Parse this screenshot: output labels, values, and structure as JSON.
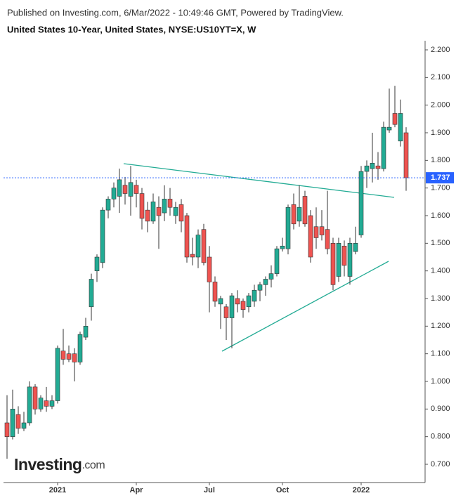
{
  "header": {
    "published": "Published on Investing.com, 6/Mar/2022 - 10:49:46 GMT, Powered by TradingView.",
    "logo": "Investing",
    "logo_suffix": ".com"
  },
  "chart_data": {
    "type": "candlestick",
    "title": "United States 10-Year, United States, NYSE:US10YT=X, W",
    "categories": [
      null,
      null,
      null,
      null,
      null,
      null,
      null,
      null,
      null,
      "2021",
      null,
      null,
      null,
      null,
      null,
      null,
      null,
      null,
      null,
      null,
      null,
      null,
      null,
      "Apr",
      null,
      null,
      null,
      null,
      null,
      null,
      null,
      null,
      null,
      null,
      null,
      null,
      "Jul",
      null,
      null,
      null,
      null,
      null,
      null,
      null,
      null,
      null,
      null,
      null,
      null,
      "Oct",
      null,
      null,
      null,
      null,
      null,
      null,
      null,
      null,
      null,
      null,
      null,
      null,
      null,
      "2022",
      null,
      null,
      null,
      null,
      null,
      null,
      null,
      null
    ],
    "open": [
      0.85,
      0.8,
      0.88,
      0.83,
      0.85,
      0.98,
      0.9,
      0.93,
      0.91,
      0.93,
      1.11,
      1.1,
      1.1,
      1.07,
      1.16,
      1.27,
      1.4,
      1.43,
      1.62,
      1.66,
      1.67,
      1.71,
      1.67,
      1.71,
      1.68,
      1.62,
      1.58,
      1.63,
      1.61,
      1.66,
      1.6,
      1.64,
      1.6,
      1.46,
      1.45,
      1.55,
      1.45,
      1.36,
      1.28,
      1.27,
      1.23,
      1.3,
      1.29,
      1.27,
      1.29,
      1.33,
      1.35,
      1.37,
      1.39,
      1.48,
      1.48,
      1.64,
      1.58,
      1.67,
      1.6,
      1.56,
      1.56,
      1.55,
      1.5,
      1.38,
      1.49,
      1.38,
      1.47,
      1.53,
      1.76,
      1.77,
      1.78,
      1.77,
      1.91,
      1.97,
      1.87,
      1.9
    ],
    "high": [
      0.95,
      0.97,
      0.91,
      0.89,
      1.0,
      0.99,
      0.95,
      0.98,
      0.95,
      1.13,
      1.19,
      1.13,
      1.12,
      1.18,
      1.23,
      1.39,
      1.46,
      1.63,
      1.67,
      1.72,
      1.77,
      1.74,
      1.78,
      1.73,
      1.7,
      1.65,
      1.68,
      1.67,
      1.71,
      1.7,
      1.65,
      1.66,
      1.61,
      1.52,
      1.55,
      1.57,
      1.49,
      1.38,
      1.31,
      1.28,
      1.32,
      1.33,
      1.3,
      1.32,
      1.35,
      1.36,
      1.38,
      1.42,
      1.49,
      1.52,
      1.64,
      1.68,
      1.71,
      1.69,
      1.62,
      1.63,
      1.62,
      1.69,
      1.52,
      1.52,
      1.51,
      1.52,
      1.56,
      1.78,
      1.8,
      1.9,
      1.83,
      1.94,
      2.06,
      2.07,
      2.02,
      1.92
    ],
    "low": [
      0.72,
      0.79,
      0.81,
      0.82,
      0.84,
      0.88,
      0.89,
      0.89,
      0.9,
      0.92,
      1.06,
      1.07,
      1.0,
      1.06,
      1.15,
      1.22,
      1.36,
      1.41,
      1.59,
      1.63,
      1.61,
      1.64,
      1.6,
      1.63,
      1.55,
      1.54,
      1.57,
      1.48,
      1.58,
      1.6,
      1.57,
      1.54,
      1.43,
      1.42,
      1.41,
      1.42,
      1.25,
      1.27,
      1.19,
      1.15,
      1.12,
      1.25,
      1.23,
      1.25,
      1.27,
      1.29,
      1.31,
      1.34,
      1.38,
      1.47,
      1.46,
      1.55,
      1.56,
      1.56,
      1.43,
      1.48,
      1.51,
      1.46,
      1.33,
      1.36,
      1.38,
      1.35,
      1.46,
      1.52,
      1.7,
      1.72,
      1.73,
      1.76,
      1.9,
      1.92,
      1.85,
      1.69
    ],
    "close": [
      0.8,
      0.9,
      0.83,
      0.85,
      0.98,
      0.9,
      0.94,
      0.91,
      0.93,
      1.12,
      1.08,
      1.08,
      1.07,
      1.17,
      1.2,
      1.37,
      1.45,
      1.62,
      1.66,
      1.7,
      1.73,
      1.68,
      1.72,
      1.68,
      1.59,
      1.58,
      1.65,
      1.6,
      1.66,
      1.63,
      1.63,
      1.58,
      1.45,
      1.45,
      1.53,
      1.43,
      1.36,
      1.29,
      1.3,
      1.23,
      1.31,
      1.28,
      1.26,
      1.31,
      1.33,
      1.35,
      1.37,
      1.39,
      1.48,
      1.49,
      1.63,
      1.57,
      1.63,
      1.57,
      1.45,
      1.52,
      1.53,
      1.48,
      1.35,
      1.5,
      1.42,
      1.5,
      1.5,
      1.76,
      1.78,
      1.79,
      1.77,
      1.92,
      1.92,
      1.93,
      1.97,
      1.737
    ],
    "up_color": "#22ab94",
    "down_color": "#ef5350",
    "last_price": 1.737,
    "ylim": [
      0.65,
      2.25
    ],
    "yticks": [
      {
        "value": 0.7,
        "label": "0.700"
      },
      {
        "value": 0.8,
        "label": "0.800"
      },
      {
        "value": 0.9,
        "label": "0.900"
      },
      {
        "value": 1.0,
        "label": "1.000"
      },
      {
        "value": 1.1,
        "label": "1.100"
      },
      {
        "value": 1.2,
        "label": "1.200"
      },
      {
        "value": 1.3,
        "label": "1.300"
      },
      {
        "value": 1.4,
        "label": "1.400"
      },
      {
        "value": 1.5,
        "label": "1.500"
      },
      {
        "value": 1.6,
        "label": "1.600"
      },
      {
        "value": 1.7,
        "label": "1.700"
      },
      {
        "value": 1.8,
        "label": "1.800"
      },
      {
        "value": 1.9,
        "label": "1.900"
      },
      {
        "value": 2.0,
        "label": "2.000"
      },
      {
        "value": 2.1,
        "label": "2.100"
      },
      {
        "value": 2.2,
        "label": "2.200"
      }
    ]
  }
}
